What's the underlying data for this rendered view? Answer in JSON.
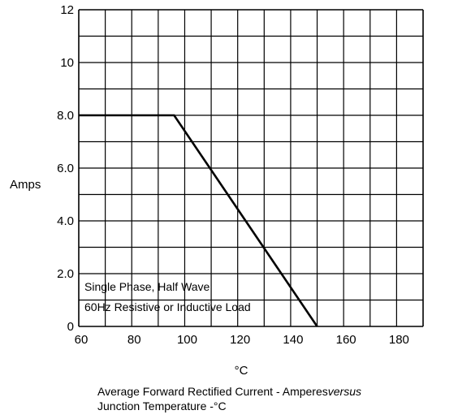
{
  "chart_data": {
    "type": "line",
    "xlim": [
      60,
      190
    ],
    "ylim": [
      0,
      12
    ],
    "x_ticks": [
      "60",
      "80",
      "100",
      "120",
      "140",
      "160",
      "180"
    ],
    "y_ticks": [
      "0",
      "2.0",
      "4.0",
      "6.0",
      "8.0",
      "10",
      "12"
    ],
    "x_tick_values": [
      60,
      80,
      100,
      120,
      140,
      160,
      180
    ],
    "y_tick_values": [
      0,
      2,
      4,
      6,
      8,
      10,
      12
    ],
    "ylabel": "Amps",
    "xlabel": "°C",
    "grid": true,
    "series": [
      {
        "x": [
          60,
          96,
          150
        ],
        "y": [
          8.0,
          8.0,
          0
        ]
      }
    ],
    "annotations": [
      "Single Phase, Half Wave",
      "60Hz Resistive or Inductive Load"
    ],
    "caption_line1": "Average Forward Rectified Current  -  Amperes",
    "caption_versus": "versus",
    "caption_line2": "Junction Temperature  -°C"
  },
  "colors": {
    "line": "#000000",
    "grid": "#000000",
    "background": "#ffffff"
  }
}
